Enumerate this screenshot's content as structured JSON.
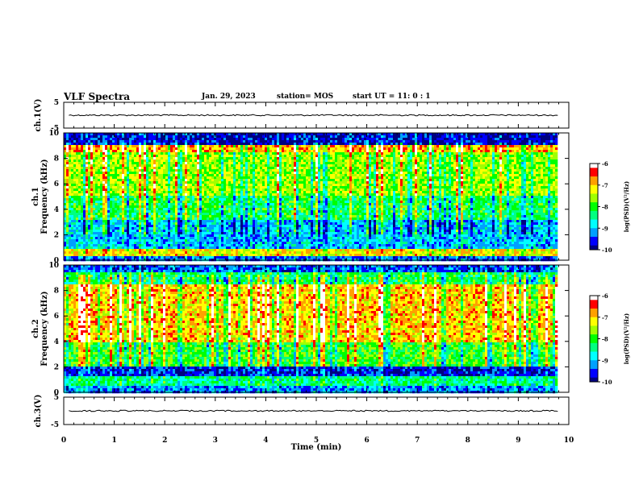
{
  "header": {
    "title": "VLF Spectra",
    "date": "Jan. 29, 2023",
    "station": "station= MOS",
    "start_ut": "start UT =  11: 0 : 1"
  },
  "colors": {
    "scale": [
      "#000080",
      "#0000ff",
      "#00a0ff",
      "#00ffff",
      "#00ff80",
      "#00ff00",
      "#a0ff00",
      "#ffff00",
      "#ffa000",
      "#ff0000",
      "#ffffff"
    ],
    "trace": "#000000",
    "frame": "#000000"
  },
  "chart_data": [
    {
      "type": "line",
      "name": "ch1-waveform",
      "ylabel": "ch.1(V)",
      "ylim": [
        -5,
        5
      ],
      "y_ticks": [
        "5",
        "-5"
      ],
      "xlim": [
        0,
        10
      ],
      "trace_level": 0
    },
    {
      "type": "heatmap",
      "name": "ch1-spectrogram",
      "ylabel": "ch.1 Frequency (kHz)",
      "xlim": [
        0,
        10
      ],
      "ylim": [
        0,
        10
      ],
      "data_end_min": 9.8,
      "y_ticks": [
        "0",
        "2",
        "4",
        "6",
        "8",
        "10"
      ],
      "colorbar": {
        "label": "log(PSD)(V²/Hz)",
        "range": [
          -10,
          -6
        ],
        "ticks": [
          "-6",
          "-7",
          "-8",
          "-9",
          "-10"
        ]
      },
      "bands_khz": [
        {
          "from": 0,
          "to": 0.4,
          "level": -9.3
        },
        {
          "from": 0.4,
          "to": 0.9,
          "level": -7.2
        },
        {
          "from": 0.9,
          "to": 3.2,
          "level": -9.0
        },
        {
          "from": 3.2,
          "to": 5.0,
          "level": -8.2
        },
        {
          "from": 5.0,
          "to": 8.4,
          "level": -7.6
        },
        {
          "from": 8.4,
          "to": 9.0,
          "level": -6.8
        },
        {
          "from": 9.0,
          "to": 10.0,
          "level": -9.7
        }
      ]
    },
    {
      "type": "heatmap",
      "name": "ch2-spectrogram",
      "ylabel": "ch.2 Frequency (kHz)",
      "xlim": [
        0,
        10
      ],
      "ylim": [
        0,
        10
      ],
      "data_end_min": 9.8,
      "y_ticks": [
        "0",
        "2",
        "4",
        "6",
        "8",
        "10"
      ],
      "colorbar": {
        "label": "log(PSD)(V²/Hz)",
        "range": [
          -10,
          -6
        ],
        "ticks": [
          "-6",
          "-7",
          "-8",
          "-9",
          "-10"
        ]
      },
      "bands_khz": [
        {
          "from": 0,
          "to": 0.5,
          "level": -9.2
        },
        {
          "from": 0.5,
          "to": 1.2,
          "level": -8.4
        },
        {
          "from": 1.2,
          "to": 2.0,
          "level": -9.6
        },
        {
          "from": 2.0,
          "to": 4.0,
          "level": -8.0
        },
        {
          "from": 4.0,
          "to": 8.5,
          "level": -7.0
        },
        {
          "from": 8.5,
          "to": 9.5,
          "level": -8.2
        },
        {
          "from": 9.5,
          "to": 10.0,
          "level": -9.4
        }
      ]
    },
    {
      "type": "line",
      "name": "ch3-waveform",
      "ylabel": "ch.3(V)",
      "ylim": [
        -5,
        5
      ],
      "y_ticks": [
        "5",
        "-5"
      ],
      "xlim": [
        0,
        10
      ],
      "trace_level": 0
    }
  ],
  "x_axis": {
    "label": "Time (min)",
    "ticks": [
      "0",
      "1",
      "2",
      "3",
      "4",
      "5",
      "6",
      "7",
      "8",
      "9",
      "10"
    ]
  }
}
